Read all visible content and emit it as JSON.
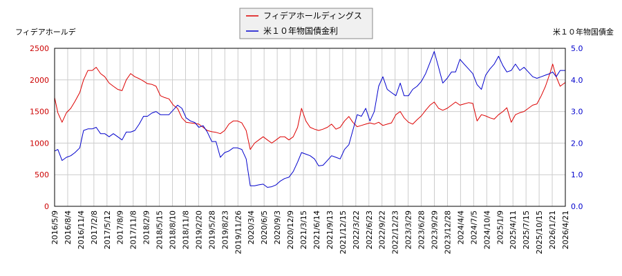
{
  "chart_data": {
    "type": "line",
    "left_axis_label": "フィデアホールデ",
    "right_axis_label": "米１０年物国債金",
    "left_ylim": [
      0,
      2500
    ],
    "left_yticks": [
      0,
      500,
      1000,
      1500,
      2000,
      2500
    ],
    "right_ylim": [
      0.0,
      5.0
    ],
    "right_yticks": [
      "0.0",
      "1.0",
      "2.0",
      "3.0",
      "4.0",
      "5.0"
    ],
    "xlim": [
      "2016-05-09",
      "2026-04-21"
    ],
    "x_tick_labels": [
      "2016/5/9",
      "2016/8/4",
      "2016/11/4",
      "2017/2/8",
      "2017/5/12",
      "2017/8/9",
      "2017/11/8",
      "2018/2/9",
      "2018/5/15",
      "2018/8/10",
      "2018/11/8",
      "2019/2/20",
      "2019/5/28",
      "2019/8/23",
      "2019/11/26",
      "2020/3/4",
      "2020/6/5",
      "2020/9/3",
      "2020/12/9",
      "2021/3/15",
      "2021/6/14",
      "2021/9/13",
      "2021/12/15",
      "2022/3/22",
      "2022/6/23",
      "2022/9/22",
      "2022/12/23",
      "2023/3/29",
      "2023/6/28",
      "2023/9/29",
      "2023/12/28",
      "2024/4/4",
      "2024/7/5",
      "2024/10/4",
      "2025/1/9",
      "2025/4/11",
      "2025/7/15",
      "2025/10/15",
      "2026/1/21",
      "2026/4/21"
    ],
    "grid": true,
    "legend_position": "top-center",
    "colors": {
      "stock": "#dd0000",
      "bond": "#0000cc"
    },
    "series": [
      {
        "name": "フィデアホールディングス",
        "axis": "left",
        "points": [
          [
            "2016-05-09",
            1720
          ],
          [
            "2016-06-01",
            1480
          ],
          [
            "2016-07-01",
            1330
          ],
          [
            "2016-08-01",
            1480
          ],
          [
            "2016-09-01",
            1550
          ],
          [
            "2016-10-01",
            1660
          ],
          [
            "2016-11-04",
            1800
          ],
          [
            "2016-12-01",
            2000
          ],
          [
            "2017-01-01",
            2150
          ],
          [
            "2017-02-01",
            2150
          ],
          [
            "2017-03-01",
            2200
          ],
          [
            "2017-04-01",
            2100
          ],
          [
            "2017-05-01",
            2050
          ],
          [
            "2017-06-01",
            1950
          ],
          [
            "2017-07-01",
            1900
          ],
          [
            "2017-08-01",
            1850
          ],
          [
            "2017-09-01",
            1830
          ],
          [
            "2017-10-01",
            2000
          ],
          [
            "2017-11-01",
            2100
          ],
          [
            "2017-12-01",
            2050
          ],
          [
            "2018-01-01",
            2020
          ],
          [
            "2018-02-01",
            1980
          ],
          [
            "2018-03-01",
            1940
          ],
          [
            "2018-04-01",
            1930
          ],
          [
            "2018-05-01",
            1900
          ],
          [
            "2018-06-01",
            1750
          ],
          [
            "2018-07-01",
            1720
          ],
          [
            "2018-08-01",
            1700
          ],
          [
            "2018-09-01",
            1600
          ],
          [
            "2018-10-01",
            1550
          ],
          [
            "2018-11-01",
            1400
          ],
          [
            "2018-12-01",
            1330
          ],
          [
            "2019-01-01",
            1320
          ],
          [
            "2019-02-01",
            1310
          ],
          [
            "2019-03-01",
            1300
          ],
          [
            "2019-04-01",
            1250
          ],
          [
            "2019-05-01",
            1200
          ],
          [
            "2019-06-01",
            1180
          ],
          [
            "2019-07-01",
            1170
          ],
          [
            "2019-08-01",
            1150
          ],
          [
            "2019-09-01",
            1200
          ],
          [
            "2019-10-01",
            1300
          ],
          [
            "2019-11-01",
            1350
          ],
          [
            "2019-12-01",
            1350
          ],
          [
            "2020-01-01",
            1320
          ],
          [
            "2020-02-01",
            1200
          ],
          [
            "2020-03-01",
            900
          ],
          [
            "2020-04-01",
            1000
          ],
          [
            "2020-05-01",
            1050
          ],
          [
            "2020-06-01",
            1100
          ],
          [
            "2020-07-01",
            1050
          ],
          [
            "2020-08-01",
            1000
          ],
          [
            "2020-09-01",
            1050
          ],
          [
            "2020-10-01",
            1100
          ],
          [
            "2020-11-01",
            1100
          ],
          [
            "2020-12-01",
            1050
          ],
          [
            "2021-01-01",
            1100
          ],
          [
            "2021-02-01",
            1250
          ],
          [
            "2021-03-01",
            1550
          ],
          [
            "2021-04-01",
            1350
          ],
          [
            "2021-05-01",
            1250
          ],
          [
            "2021-06-01",
            1220
          ],
          [
            "2021-07-01",
            1200
          ],
          [
            "2021-08-01",
            1220
          ],
          [
            "2021-09-01",
            1250
          ],
          [
            "2021-10-01",
            1300
          ],
          [
            "2021-11-01",
            1220
          ],
          [
            "2021-12-01",
            1250
          ],
          [
            "2022-01-01",
            1350
          ],
          [
            "2022-02-01",
            1420
          ],
          [
            "2022-03-01",
            1330
          ],
          [
            "2022-04-01",
            1260
          ],
          [
            "2022-05-01",
            1280
          ],
          [
            "2022-06-01",
            1300
          ],
          [
            "2022-07-01",
            1320
          ],
          [
            "2022-08-01",
            1300
          ],
          [
            "2022-09-01",
            1330
          ],
          [
            "2022-10-01",
            1280
          ],
          [
            "2022-11-01",
            1300
          ],
          [
            "2022-12-01",
            1320
          ],
          [
            "2023-01-01",
            1450
          ],
          [
            "2023-02-01",
            1500
          ],
          [
            "2023-03-01",
            1400
          ],
          [
            "2023-04-01",
            1330
          ],
          [
            "2023-05-01",
            1300
          ],
          [
            "2023-06-01",
            1370
          ],
          [
            "2023-07-01",
            1430
          ],
          [
            "2023-08-01",
            1520
          ],
          [
            "2023-09-01",
            1600
          ],
          [
            "2023-10-01",
            1650
          ],
          [
            "2023-11-01",
            1550
          ],
          [
            "2023-12-01",
            1520
          ],
          [
            "2024-01-01",
            1550
          ],
          [
            "2024-02-01",
            1600
          ],
          [
            "2024-03-01",
            1650
          ],
          [
            "2024-04-01",
            1600
          ],
          [
            "2024-05-01",
            1620
          ],
          [
            "2024-06-01",
            1640
          ],
          [
            "2024-07-01",
            1630
          ],
          [
            "2024-08-01",
            1350
          ],
          [
            "2024-09-01",
            1450
          ],
          [
            "2024-10-01",
            1430
          ],
          [
            "2024-11-01",
            1400
          ],
          [
            "2024-12-01",
            1380
          ],
          [
            "2025-01-01",
            1450
          ],
          [
            "2025-02-01",
            1500
          ],
          [
            "2025-03-01",
            1560
          ],
          [
            "2025-04-01",
            1330
          ],
          [
            "2025-05-01",
            1450
          ],
          [
            "2025-06-01",
            1480
          ],
          [
            "2025-07-01",
            1500
          ],
          [
            "2025-08-01",
            1550
          ],
          [
            "2025-09-01",
            1600
          ],
          [
            "2025-10-01",
            1620
          ],
          [
            "2025-11-01",
            1750
          ],
          [
            "2025-12-01",
            1900
          ],
          [
            "2026-01-01",
            2100
          ],
          [
            "2026-01-21",
            2250
          ],
          [
            "2026-02-15",
            2050
          ],
          [
            "2026-03-15",
            1900
          ],
          [
            "2026-04-21",
            1960
          ]
        ]
      },
      {
        "name": "米１０年物国債金利",
        "axis": "right",
        "points": [
          [
            "2016-05-09",
            1.75
          ],
          [
            "2016-06-01",
            1.8
          ],
          [
            "2016-07-01",
            1.45
          ],
          [
            "2016-08-01",
            1.55
          ],
          [
            "2016-09-01",
            1.6
          ],
          [
            "2016-10-01",
            1.7
          ],
          [
            "2016-11-04",
            1.85
          ],
          [
            "2016-12-01",
            2.4
          ],
          [
            "2017-01-01",
            2.45
          ],
          [
            "2017-02-01",
            2.45
          ],
          [
            "2017-03-01",
            2.5
          ],
          [
            "2017-04-01",
            2.3
          ],
          [
            "2017-05-01",
            2.3
          ],
          [
            "2017-06-01",
            2.2
          ],
          [
            "2017-07-01",
            2.3
          ],
          [
            "2017-08-01",
            2.2
          ],
          [
            "2017-09-01",
            2.1
          ],
          [
            "2017-10-01",
            2.35
          ],
          [
            "2017-11-01",
            2.35
          ],
          [
            "2017-12-01",
            2.4
          ],
          [
            "2018-01-01",
            2.6
          ],
          [
            "2018-02-01",
            2.85
          ],
          [
            "2018-03-01",
            2.85
          ],
          [
            "2018-04-01",
            2.95
          ],
          [
            "2018-05-01",
            3.0
          ],
          [
            "2018-06-01",
            2.9
          ],
          [
            "2018-07-01",
            2.9
          ],
          [
            "2018-08-01",
            2.9
          ],
          [
            "2018-09-01",
            3.05
          ],
          [
            "2018-10-01",
            3.2
          ],
          [
            "2018-11-01",
            3.1
          ],
          [
            "2018-12-01",
            2.8
          ],
          [
            "2019-01-01",
            2.7
          ],
          [
            "2019-02-01",
            2.65
          ],
          [
            "2019-03-01",
            2.5
          ],
          [
            "2019-04-01",
            2.55
          ],
          [
            "2019-05-01",
            2.35
          ],
          [
            "2019-06-01",
            2.05
          ],
          [
            "2019-07-01",
            2.05
          ],
          [
            "2019-08-01",
            1.55
          ],
          [
            "2019-09-01",
            1.7
          ],
          [
            "2019-10-01",
            1.75
          ],
          [
            "2019-11-01",
            1.85
          ],
          [
            "2019-12-01",
            1.85
          ],
          [
            "2020-01-01",
            1.8
          ],
          [
            "2020-02-01",
            1.5
          ],
          [
            "2020-03-01",
            0.65
          ],
          [
            "2020-04-01",
            0.65
          ],
          [
            "2020-05-01",
            0.68
          ],
          [
            "2020-06-01",
            0.7
          ],
          [
            "2020-07-01",
            0.6
          ],
          [
            "2020-08-01",
            0.62
          ],
          [
            "2020-09-01",
            0.68
          ],
          [
            "2020-10-01",
            0.8
          ],
          [
            "2020-11-01",
            0.88
          ],
          [
            "2020-12-01",
            0.92
          ],
          [
            "2021-01-01",
            1.1
          ],
          [
            "2021-02-01",
            1.4
          ],
          [
            "2021-03-01",
            1.7
          ],
          [
            "2021-04-01",
            1.65
          ],
          [
            "2021-05-01",
            1.6
          ],
          [
            "2021-06-01",
            1.5
          ],
          [
            "2021-07-01",
            1.28
          ],
          [
            "2021-08-01",
            1.3
          ],
          [
            "2021-09-01",
            1.45
          ],
          [
            "2021-10-01",
            1.6
          ],
          [
            "2021-11-01",
            1.55
          ],
          [
            "2021-12-01",
            1.5
          ],
          [
            "2022-01-01",
            1.8
          ],
          [
            "2022-02-01",
            1.95
          ],
          [
            "2022-03-01",
            2.4
          ],
          [
            "2022-04-01",
            2.9
          ],
          [
            "2022-05-01",
            2.85
          ],
          [
            "2022-06-01",
            3.1
          ],
          [
            "2022-07-01",
            2.7
          ],
          [
            "2022-08-01",
            3.0
          ],
          [
            "2022-09-01",
            3.8
          ],
          [
            "2022-10-01",
            4.1
          ],
          [
            "2022-11-01",
            3.7
          ],
          [
            "2022-12-01",
            3.6
          ],
          [
            "2023-01-01",
            3.5
          ],
          [
            "2023-02-01",
            3.9
          ],
          [
            "2023-03-01",
            3.5
          ],
          [
            "2023-04-01",
            3.5
          ],
          [
            "2023-05-01",
            3.7
          ],
          [
            "2023-06-01",
            3.8
          ],
          [
            "2023-07-01",
            3.95
          ],
          [
            "2023-08-01",
            4.2
          ],
          [
            "2023-09-01",
            4.55
          ],
          [
            "2023-10-01",
            4.9
          ],
          [
            "2023-11-01",
            4.4
          ],
          [
            "2023-12-01",
            3.9
          ],
          [
            "2024-01-01",
            4.05
          ],
          [
            "2024-02-01",
            4.25
          ],
          [
            "2024-03-01",
            4.25
          ],
          [
            "2024-04-01",
            4.65
          ],
          [
            "2024-05-01",
            4.5
          ],
          [
            "2024-06-01",
            4.35
          ],
          [
            "2024-07-01",
            4.2
          ],
          [
            "2024-08-01",
            3.85
          ],
          [
            "2024-09-01",
            3.7
          ],
          [
            "2024-10-01",
            4.15
          ],
          [
            "2024-11-01",
            4.35
          ],
          [
            "2024-12-01",
            4.5
          ],
          [
            "2025-01-01",
            4.75
          ],
          [
            "2025-02-01",
            4.45
          ],
          [
            "2025-03-01",
            4.25
          ],
          [
            "2025-04-01",
            4.3
          ],
          [
            "2025-05-01",
            4.5
          ],
          [
            "2025-06-01",
            4.3
          ],
          [
            "2025-07-01",
            4.4
          ],
          [
            "2025-08-01",
            4.25
          ],
          [
            "2025-09-01",
            4.1
          ],
          [
            "2025-10-01",
            4.05
          ],
          [
            "2025-11-01",
            4.1
          ],
          [
            "2025-12-01",
            4.15
          ],
          [
            "2026-01-01",
            4.2
          ],
          [
            "2026-01-21",
            4.25
          ],
          [
            "2026-02-15",
            4.1
          ],
          [
            "2026-03-15",
            4.3
          ],
          [
            "2026-04-21",
            4.3
          ]
        ]
      }
    ]
  }
}
